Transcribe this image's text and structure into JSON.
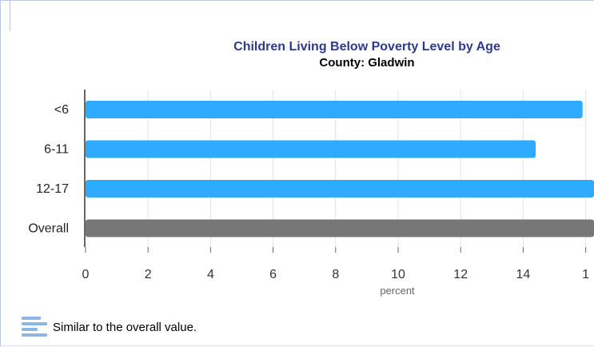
{
  "chart_data": {
    "type": "bar",
    "orientation": "horizontal",
    "title": "Children Living Below Poverty Level by Age",
    "subtitle": "County: Gladwin",
    "categories": [
      "<6",
      "6-11",
      "12-17",
      "Overall"
    ],
    "values": [
      15.9,
      14.4,
      16.5,
      16.4
    ],
    "bar_colors": [
      "#2eaaff",
      "#2eaaff",
      "#2eaaff",
      "#777777"
    ],
    "xlabel": "percent",
    "x_ticks": [
      "0",
      "2",
      "4",
      "6",
      "8",
      "10",
      "12",
      "14",
      "1"
    ],
    "xlim": [
      0,
      16
    ],
    "grid": true,
    "legend": {
      "label": "Similar to the overall value.",
      "icon": "similar-value-icon",
      "color": "#8fb7e6"
    }
  }
}
